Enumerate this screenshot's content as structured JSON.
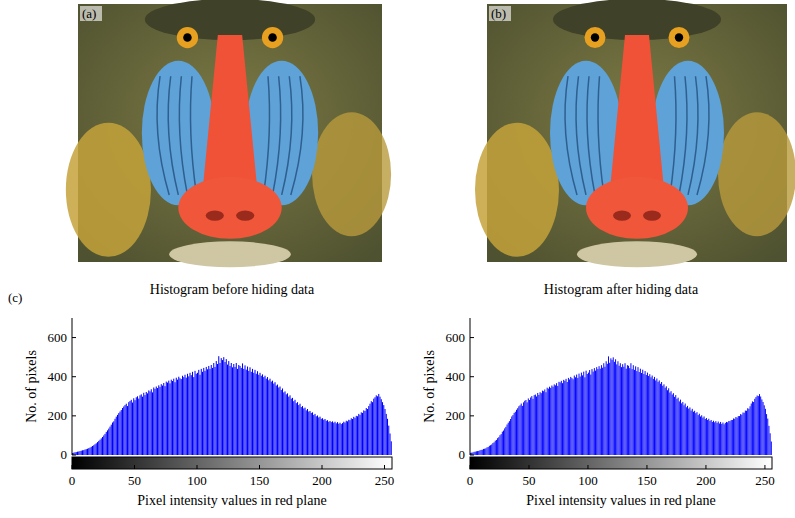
{
  "images": [
    {
      "label": "(a)"
    },
    {
      "label": "(b)"
    }
  ],
  "chart_data": [
    {
      "type": "histogram",
      "panel_label": "(c)",
      "title": "Histogram before hiding data",
      "x_label": "Pixel intensity values in red plane",
      "y_label": "No. of pixels",
      "color": "#0000ff",
      "xlim": [
        0,
        256
      ],
      "ylim": [
        0,
        700
      ],
      "xticks": [
        0,
        50,
        100,
        150,
        200,
        250
      ],
      "yticks": [
        0,
        200,
        400,
        600
      ],
      "bins": [
        0,
        1,
        2,
        3,
        4,
        5,
        6,
        7,
        8,
        9,
        10,
        11,
        12,
        13,
        14,
        15,
        16,
        17,
        18,
        19,
        20,
        21,
        22,
        23,
        24,
        25,
        26,
        27,
        28,
        29,
        30,
        31,
        32,
        33,
        34,
        35,
        36,
        37,
        38,
        39,
        40,
        41,
        42,
        43,
        44,
        45,
        46,
        47,
        48,
        49,
        50,
        51,
        52,
        53,
        54,
        55,
        56,
        57,
        58,
        59,
        60,
        61,
        62,
        63,
        64,
        65,
        66,
        67,
        68,
        69,
        70,
        71,
        72,
        73,
        74,
        75,
        76,
        77,
        78,
        79,
        80,
        81,
        82,
        83,
        84,
        85,
        86,
        87,
        88,
        89,
        90,
        91,
        92,
        93,
        94,
        95,
        96,
        97,
        98,
        99,
        100,
        101,
        102,
        103,
        104,
        105,
        106,
        107,
        108,
        109,
        110,
        111,
        112,
        113,
        114,
        115,
        116,
        117,
        118,
        119,
        120,
        121,
        122,
        123,
        124,
        125,
        126,
        127,
        128,
        129,
        130,
        131,
        132,
        133,
        134,
        135,
        136,
        137,
        138,
        139,
        140,
        141,
        142,
        143,
        144,
        145,
        146,
        147,
        148,
        149,
        150,
        151,
        152,
        153,
        154,
        155,
        156,
        157,
        158,
        159,
        160,
        161,
        162,
        163,
        164,
        165,
        166,
        167,
        168,
        169,
        170,
        171,
        172,
        173,
        174,
        175,
        176,
        177,
        178,
        179,
        180,
        181,
        182,
        183,
        184,
        185,
        186,
        187,
        188,
        189,
        190,
        191,
        192,
        193,
        194,
        195,
        196,
        197,
        198,
        199,
        200,
        201,
        202,
        203,
        204,
        205,
        206,
        207,
        208,
        209,
        210,
        211,
        212,
        213,
        214,
        215,
        216,
        217,
        218,
        219,
        220,
        221,
        222,
        223,
        224,
        225,
        226,
        227,
        228,
        229,
        230,
        231,
        232,
        233,
        234,
        235,
        236,
        237,
        238,
        239,
        240,
        241,
        242,
        243,
        244,
        245,
        246,
        247,
        248,
        249,
        250,
        251,
        252,
        253,
        254,
        255,
        256
      ],
      "values": [
        10,
        12,
        14,
        15,
        17,
        18,
        20,
        22,
        24,
        25,
        28,
        30,
        32,
        35,
        38,
        42,
        46,
        50,
        55,
        60,
        66,
        72,
        78,
        85,
        92,
        100,
        108,
        118,
        126,
        135,
        145,
        155,
        166,
        172,
        185,
        196,
        205,
        214,
        222,
        230,
        240,
        248,
        255,
        262,
        250,
        270,
        276,
        282,
        268,
        290,
        280,
        295,
        300,
        288,
        305,
        310,
        298,
        318,
        306,
        322,
        315,
        330,
        325,
        336,
        320,
        345,
        338,
        350,
        342,
        356,
        348,
        362,
        355,
        368,
        352,
        375,
        370,
        380,
        366,
        385,
        378,
        390,
        372,
        395,
        385,
        400,
        392,
        388,
        405,
        398,
        410,
        395,
        415,
        402,
        420,
        408,
        425,
        398,
        430,
        415,
        420,
        435,
        410,
        440,
        425,
        445,
        430,
        450,
        438,
        455,
        440,
        460,
        445,
        470,
        450,
        480,
        465,
        505,
        470,
        495,
        485,
        500,
        475,
        490,
        462,
        480,
        455,
        470,
        448,
        465,
        450,
        470,
        440,
        460,
        455,
        445,
        468,
        440,
        458,
        436,
        452,
        430,
        448,
        425,
        440,
        420,
        435,
        415,
        428,
        410,
        420,
        405,
        412,
        398,
        405,
        390,
        398,
        382,
        390,
        375,
        380,
        365,
        372,
        355,
        360,
        345,
        350,
        332,
        340,
        320,
        325,
        310,
        315,
        298,
        305,
        288,
        292,
        275,
        282,
        265,
        270,
        255,
        262,
        245,
        250,
        238,
        242,
        228,
        235,
        222,
        225,
        215,
        218,
        205,
        210,
        198,
        202,
        192,
        196,
        185,
        188,
        180,
        184,
        175,
        178,
        170,
        174,
        168,
        172,
        165,
        170,
        162,
        168,
        160,
        165,
        158,
        163,
        170,
        166,
        175,
        172,
        180,
        178,
        188,
        184,
        195,
        190,
        200,
        198,
        210,
        205,
        218,
        215,
        228,
        225,
        240,
        235,
        250,
        262,
        275,
        270,
        288,
        295,
        305,
        300,
        312,
        298,
        285,
        270,
        255,
        235,
        210,
        185,
        150,
        110,
        70
      ]
    },
    {
      "type": "histogram",
      "title": "Histogram after hiding data",
      "x_label": "Pixel intensity values in red plane",
      "y_label": "No. of pixels",
      "color": "#0000ff",
      "xlim": [
        0,
        256
      ],
      "ylim": [
        0,
        700
      ],
      "xticks": [
        0,
        50,
        100,
        150,
        200,
        250
      ],
      "yticks": [
        0,
        200,
        400,
        600
      ],
      "bins": [
        0,
        1,
        2,
        3,
        4,
        5,
        6,
        7,
        8,
        9,
        10,
        11,
        12,
        13,
        14,
        15,
        16,
        17,
        18,
        19,
        20,
        21,
        22,
        23,
        24,
        25,
        26,
        27,
        28,
        29,
        30,
        31,
        32,
        33,
        34,
        35,
        36,
        37,
        38,
        39,
        40,
        41,
        42,
        43,
        44,
        45,
        46,
        47,
        48,
        49,
        50,
        51,
        52,
        53,
        54,
        55,
        56,
        57,
        58,
        59,
        60,
        61,
        62,
        63,
        64,
        65,
        66,
        67,
        68,
        69,
        70,
        71,
        72,
        73,
        74,
        75,
        76,
        77,
        78,
        79,
        80,
        81,
        82,
        83,
        84,
        85,
        86,
        87,
        88,
        89,
        90,
        91,
        92,
        93,
        94,
        95,
        96,
        97,
        98,
        99,
        100,
        101,
        102,
        103,
        104,
        105,
        106,
        107,
        108,
        109,
        110,
        111,
        112,
        113,
        114,
        115,
        116,
        117,
        118,
        119,
        120,
        121,
        122,
        123,
        124,
        125,
        126,
        127,
        128,
        129,
        130,
        131,
        132,
        133,
        134,
        135,
        136,
        137,
        138,
        139,
        140,
        141,
        142,
        143,
        144,
        145,
        146,
        147,
        148,
        149,
        150,
        151,
        152,
        153,
        154,
        155,
        156,
        157,
        158,
        159,
        160,
        161,
        162,
        163,
        164,
        165,
        166,
        167,
        168,
        169,
        170,
        171,
        172,
        173,
        174,
        175,
        176,
        177,
        178,
        179,
        180,
        181,
        182,
        183,
        184,
        185,
        186,
        187,
        188,
        189,
        190,
        191,
        192,
        193,
        194,
        195,
        196,
        197,
        198,
        199,
        200,
        201,
        202,
        203,
        204,
        205,
        206,
        207,
        208,
        209,
        210,
        211,
        212,
        213,
        214,
        215,
        216,
        217,
        218,
        219,
        220,
        221,
        222,
        223,
        224,
        225,
        226,
        227,
        228,
        229,
        230,
        231,
        232,
        233,
        234,
        235,
        236,
        237,
        238,
        239,
        240,
        241,
        242,
        243,
        244,
        245,
        246,
        247,
        248,
        249,
        250,
        251,
        252,
        253,
        254,
        255,
        256
      ],
      "values": [
        11,
        12,
        13,
        16,
        17,
        19,
        20,
        21,
        24,
        26,
        27,
        31,
        32,
        34,
        39,
        41,
        47,
        50,
        54,
        61,
        65,
        73,
        77,
        86,
        91,
        101,
        107,
        119,
        125,
        136,
        144,
        156,
        165,
        173,
        184,
        197,
        204,
        215,
        221,
        231,
        239,
        249,
        254,
        263,
        251,
        269,
        277,
        281,
        269,
        289,
        281,
        294,
        301,
        287,
        306,
        309,
        299,
        317,
        307,
        321,
        316,
        329,
        326,
        335,
        321,
        344,
        339,
        349,
        343,
        355,
        349,
        361,
        356,
        367,
        353,
        374,
        371,
        379,
        367,
        384,
        379,
        389,
        373,
        394,
        386,
        399,
        393,
        387,
        406,
        397,
        411,
        394,
        416,
        401,
        421,
        407,
        426,
        397,
        431,
        414,
        421,
        434,
        411,
        439,
        426,
        444,
        431,
        449,
        439,
        454,
        441,
        459,
        446,
        469,
        451,
        479,
        466,
        504,
        471,
        494,
        486,
        499,
        476,
        489,
        463,
        479,
        456,
        469,
        449,
        464,
        451,
        469,
        441,
        459,
        456,
        444,
        469,
        439,
        459,
        435,
        453,
        429,
        449,
        424,
        441,
        419,
        436,
        414,
        429,
        409,
        421,
        404,
        413,
        397,
        406,
        389,
        399,
        381,
        391,
        374,
        381,
        364,
        373,
        354,
        361,
        344,
        351,
        331,
        341,
        319,
        326,
        309,
        316,
        297,
        306,
        287,
        293,
        274,
        283,
        264,
        271,
        254,
        263,
        244,
        251,
        237,
        243,
        227,
        236,
        221,
        226,
        214,
        219,
        204,
        211,
        197,
        203,
        191,
        197,
        184,
        189,
        179,
        185,
        174,
        179,
        169,
        175,
        167,
        173,
        164,
        171,
        161,
        169,
        159,
        166,
        157,
        164,
        169,
        167,
        174,
        173,
        179,
        179,
        187,
        185,
        194,
        191,
        199,
        199,
        209,
        206,
        217,
        216,
        227,
        226,
        239,
        236,
        249,
        263,
        274,
        271,
        287,
        296,
        304,
        301,
        311,
        299,
        284,
        271,
        254,
        236,
        209,
        186,
        149,
        111,
        69
      ]
    }
  ]
}
